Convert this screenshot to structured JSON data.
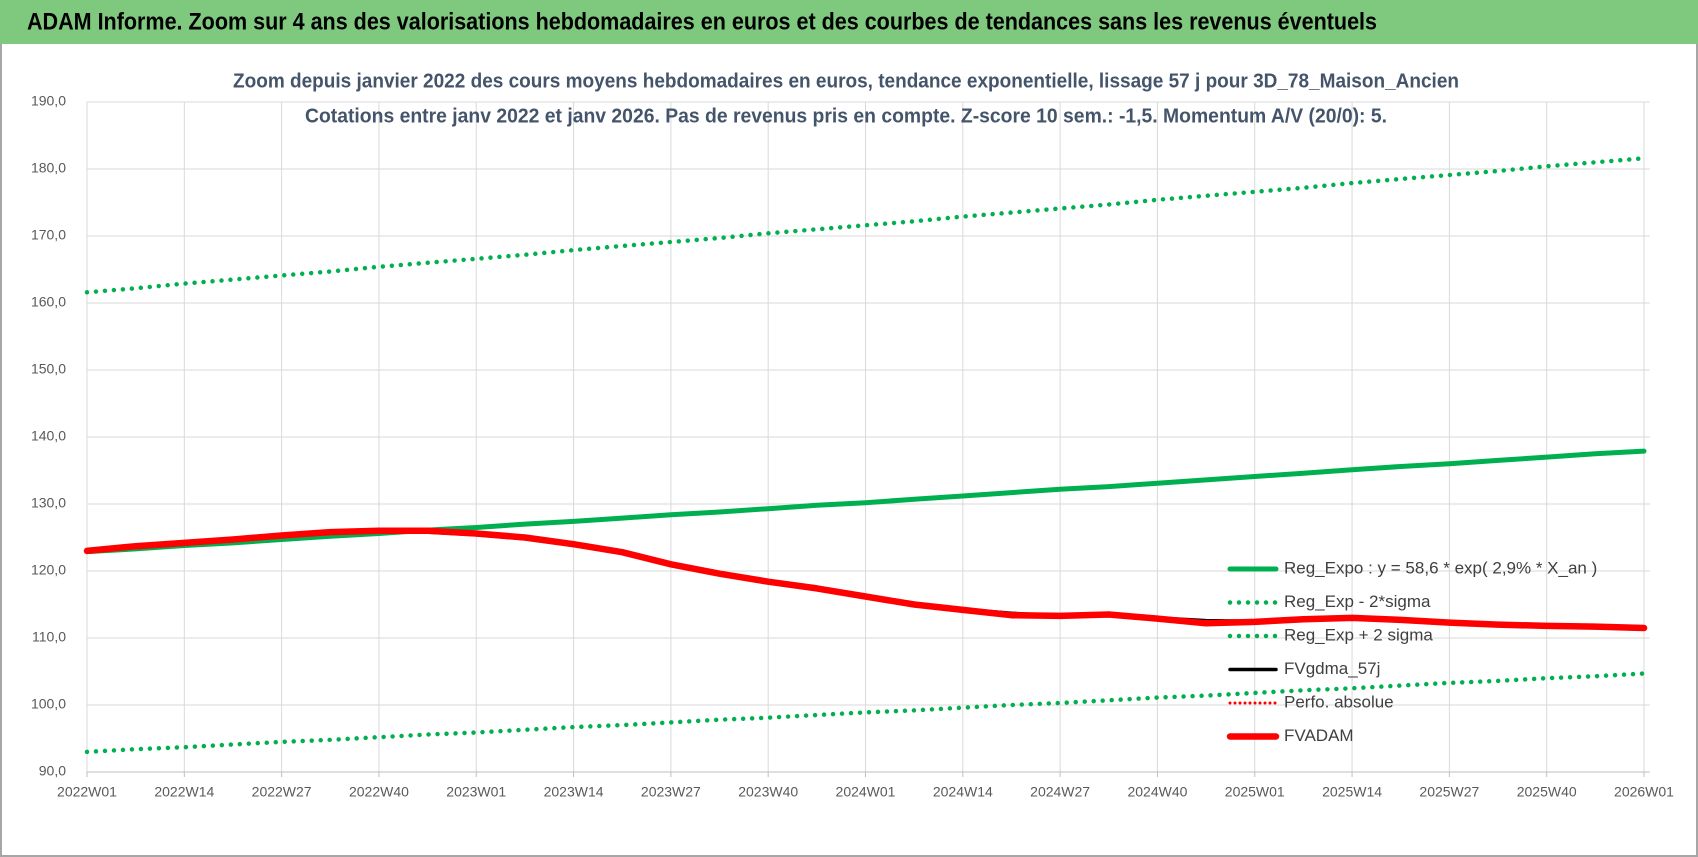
{
  "header": {
    "title": "ADAM Informe. Zoom sur 4 ans des valorisations hebdomadaires en euros et des courbes de tendances sans les revenus éventuels"
  },
  "chart_data": {
    "type": "line",
    "title": "Zoom depuis janvier 2022 des cours moyens hebdomadaires en euros, tendance exponentielle, lissage 57 j pour 3D_78_Maison_Ancien",
    "subtitle": "Cotations entre janv 2022 et janv 2026. Pas de revenus pris en compte. Z-score 10 sem.: -1,5. Momentum A/V (20/0): 5.",
    "categories": [
      "2022W01",
      null,
      "2022W14",
      null,
      "2022W27",
      null,
      "2022W40",
      null,
      "2023W01",
      null,
      "2023W14",
      null,
      "2023W27",
      null,
      "2023W40",
      null,
      "2024W01",
      null,
      "2024W14",
      null,
      "2024W27",
      null,
      "2024W40",
      null,
      "2025W01",
      null,
      "2025W14",
      null,
      "2025W27",
      null,
      "2025W40",
      null,
      "2026W01"
    ],
    "ylim": [
      90,
      190
    ],
    "yticks": [
      {
        "value": 90,
        "label": "90,0"
      },
      {
        "value": 100,
        "label": "100,0"
      },
      {
        "value": 110,
        "label": "110,0"
      },
      {
        "value": 120,
        "label": "120,0"
      },
      {
        "value": 130,
        "label": "130,0"
      },
      {
        "value": 140,
        "label": "140,0"
      },
      {
        "value": 150,
        "label": "150,0"
      },
      {
        "value": 160,
        "label": "160,0"
      },
      {
        "value": 170,
        "label": "170,0"
      },
      {
        "value": 180,
        "label": "180,0"
      },
      {
        "value": 190,
        "label": "190,0"
      }
    ],
    "grid": true,
    "legend": "right",
    "series": [
      {
        "name": "Reg_Expo : y = 58,6 * exp( 2,9% *  X_an )",
        "color": "#00b050",
        "style": "solid",
        "values": [
          122.9,
          123.3,
          123.8,
          124.2,
          124.7,
          125.2,
          125.6,
          126.1,
          126.5,
          127.0,
          127.4,
          127.9,
          128.4,
          128.8,
          129.3,
          129.8,
          130.2,
          130.7,
          131.2,
          131.7,
          132.2,
          132.6,
          133.1,
          133.6,
          134.1,
          134.6,
          135.1,
          135.6,
          136.0,
          136.5,
          137.0,
          137.5,
          137.9
        ]
      },
      {
        "name": "Reg_Exp - 2*sigma",
        "color": "#00b050",
        "style": "dotted",
        "values": [
          93.0,
          93.4,
          93.7,
          94.1,
          94.5,
          94.8,
          95.2,
          95.6,
          95.9,
          96.3,
          96.7,
          97.0,
          97.4,
          97.8,
          98.1,
          98.5,
          98.9,
          99.2,
          99.6,
          100.0,
          100.3,
          100.7,
          101.1,
          101.4,
          101.8,
          102.2,
          102.5,
          102.9,
          103.3,
          103.6,
          104.0,
          104.3,
          104.7
        ]
      },
      {
        "name": "Reg_Exp + 2 sigma",
        "color": "#00b050",
        "style": "dotted",
        "values": [
          161.6,
          162.2,
          162.9,
          163.5,
          164.1,
          164.7,
          165.4,
          166.0,
          166.6,
          167.2,
          167.9,
          168.5,
          169.1,
          169.7,
          170.4,
          171.0,
          171.6,
          172.2,
          172.9,
          173.5,
          174.1,
          174.7,
          175.4,
          176.0,
          176.6,
          177.2,
          177.9,
          178.5,
          179.1,
          179.7,
          180.4,
          181.0,
          181.6
        ]
      },
      {
        "name": "FVgdma_57j",
        "color": "#000000",
        "style": "solid",
        "values": [
          123.0,
          123.5,
          124.0,
          124.6,
          125.2,
          125.7,
          125.9,
          125.8,
          125.4,
          124.8,
          123.8,
          122.8,
          121.0,
          119.7,
          118.5,
          117.4,
          116.3,
          115.2,
          114.3,
          113.7,
          113.3,
          113.4,
          113.0,
          112.6,
          112.5,
          112.7,
          112.9,
          112.7,
          112.3,
          112.0,
          111.8,
          111.6,
          111.4
        ]
      },
      {
        "name": "Perfo. absolue",
        "color": "#ff0000",
        "style": "dotted-thin",
        "values": [
          123.0,
          123.7,
          124.2,
          124.7,
          125.3,
          125.8,
          126.0,
          126.0,
          125.6,
          125.0,
          124.0,
          122.8,
          121.0,
          119.6,
          118.4,
          117.4,
          116.2,
          115.0,
          114.2,
          113.4,
          113.3,
          113.5,
          112.9,
          112.2,
          112.4,
          112.8,
          113.0,
          112.7,
          112.3,
          112.0,
          111.8,
          111.7,
          111.5
        ]
      },
      {
        "name": "FVADAM",
        "color": "#ff0000",
        "style": "thick",
        "values": [
          123.0,
          123.7,
          124.2,
          124.7,
          125.3,
          125.8,
          126.0,
          126.0,
          125.6,
          125.0,
          124.0,
          122.8,
          121.0,
          119.6,
          118.4,
          117.4,
          116.2,
          115.0,
          114.2,
          113.4,
          113.3,
          113.5,
          112.9,
          112.2,
          112.4,
          112.8,
          113.0,
          112.7,
          112.3,
          112.0,
          111.8,
          111.7,
          111.5
        ]
      }
    ]
  }
}
